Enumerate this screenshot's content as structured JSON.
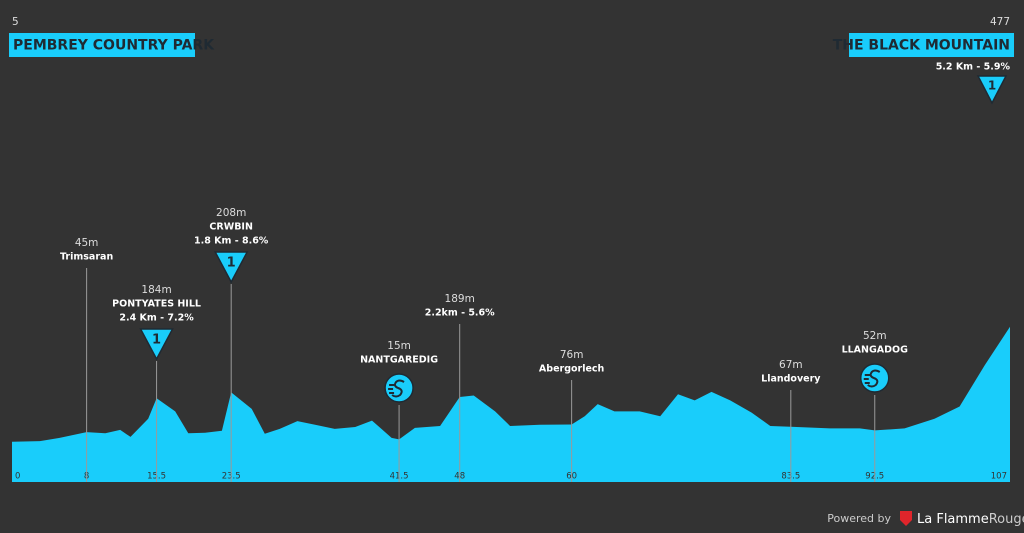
{
  "chart_data": {
    "type": "area",
    "x": [
      0,
      3,
      5.1,
      8,
      10,
      11.6,
      12.7,
      14.6,
      15.5,
      17.5,
      18.9,
      20.7,
      22.5,
      23.5,
      25.7,
      27.1,
      28.7,
      30.6,
      32.5,
      34.6,
      36.8,
      38.6,
      40.7,
      41.5,
      43.2,
      45.9,
      48,
      49.5,
      51.8,
      53.4,
      56.6,
      60,
      61.4,
      62.8,
      64.6,
      67.3,
      69.5,
      71.4,
      73.2,
      75,
      77,
      79.3,
      81.3,
      83.5,
      87.7,
      90.9,
      92.5,
      95.7,
      98.9,
      101.6,
      104.3,
      107
    ],
    "values": [
      5,
      8,
      21,
      45,
      40,
      54,
      25,
      100,
      184,
      130,
      40,
      42,
      50,
      208,
      140,
      38,
      58,
      90,
      75,
      58,
      66,
      92,
      21,
      15,
      62,
      70,
      189,
      195,
      130,
      70,
      75,
      76,
      110,
      160,
      130,
      130,
      110,
      200,
      175,
      210,
      175,
      125,
      70,
      67,
      60,
      60,
      52,
      60,
      100,
      150,
      320,
      477
    ],
    "color": "#19cdfb",
    "xlim": [
      0,
      107
    ],
    "ylim": [
      -160,
      1740
    ],
    "xticks": [
      0,
      8,
      15.5,
      23.5,
      41.5,
      48,
      60,
      83.5,
      92.5,
      107
    ],
    "start": {
      "elevation": 5,
      "name": "PEMBREY COUNTRY PARK"
    },
    "finish": {
      "elevation": 477,
      "name": "THE BLACK MOUNTAIN",
      "climb": "5.2 Km - 5.9%",
      "category": "1"
    },
    "annotations": [
      {
        "x": 8,
        "elevation": "45m",
        "name": "Trimsaran"
      },
      {
        "x": 15.5,
        "elevation": "184m",
        "name": "PONTYATES HILL",
        "climb": "2.4 Km - 7.2%",
        "icon": "kom",
        "category": "1"
      },
      {
        "x": 23.5,
        "elevation": "208m",
        "name": "CRWBIN",
        "climb": "1.8 Km - 8.6%",
        "icon": "kom",
        "category": "1"
      },
      {
        "x": 41.5,
        "elevation": "15m",
        "name": "NANTGAREDIG",
        "icon": "sprint"
      },
      {
        "x": 48,
        "elevation": "189m",
        "climb": "2.2km - 5.6%"
      },
      {
        "x": 60,
        "elevation": "76m",
        "name": "Abergorlech"
      },
      {
        "x": 83.5,
        "elevation": "67m",
        "name": "Llandovery"
      },
      {
        "x": 92.5,
        "elevation": "52m",
        "name": "LLANGADOG",
        "icon": "sprint"
      }
    ]
  },
  "footer": {
    "powered": "Powered by",
    "brand_a": "La Flamme",
    "brand_b": "Rouge"
  }
}
